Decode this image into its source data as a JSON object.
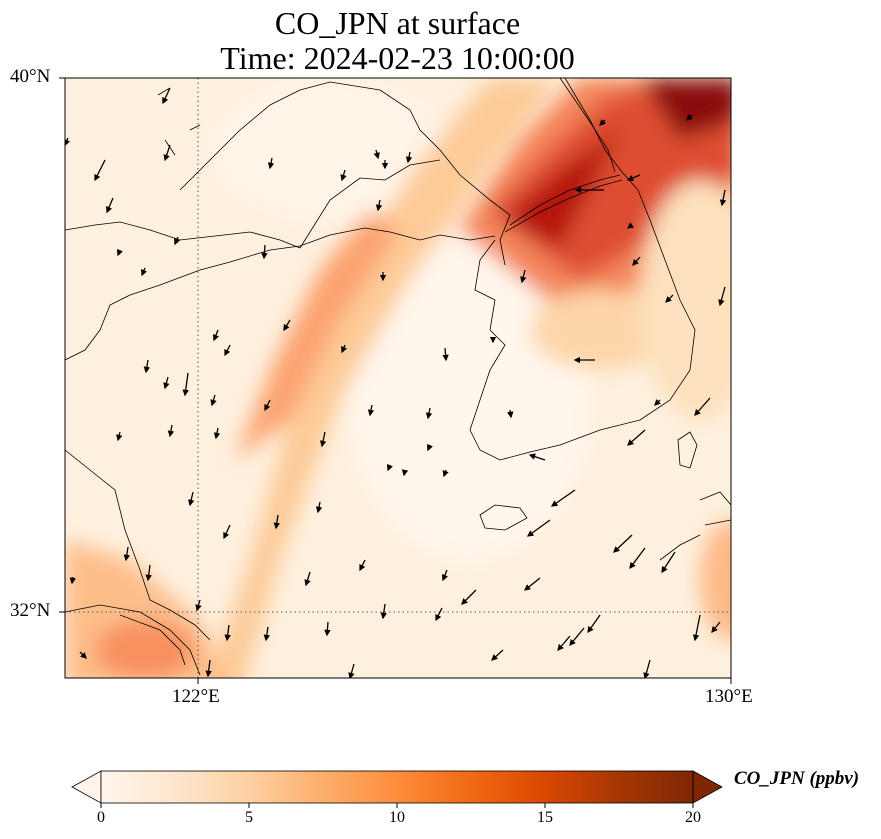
{
  "title_line1": "CO_JPN at surface",
  "title_line2": "Time: 2024-02-23 10:00:00",
  "lat_labels": [
    "40°N",
    "32°N"
  ],
  "lon_labels": [
    "122°E",
    "130°E"
  ],
  "colorbar": {
    "label": "CO_JPN (ppbv)",
    "ticks": [
      "0",
      "5",
      "10",
      "15",
      "20"
    ],
    "min": 0,
    "max": 20,
    "extend": "both",
    "colormap": [
      "#fff5eb",
      "#fee6ce",
      "#fdd0a2",
      "#fdae6b",
      "#fd8d3c",
      "#f16913",
      "#d94801",
      "#a63603",
      "#7f2704"
    ]
  },
  "map": {
    "lon_range": [
      120,
      130
    ],
    "lat_range": [
      31,
      40
    ],
    "gridlines": [
      "122°E",
      "32°N"
    ]
  }
}
